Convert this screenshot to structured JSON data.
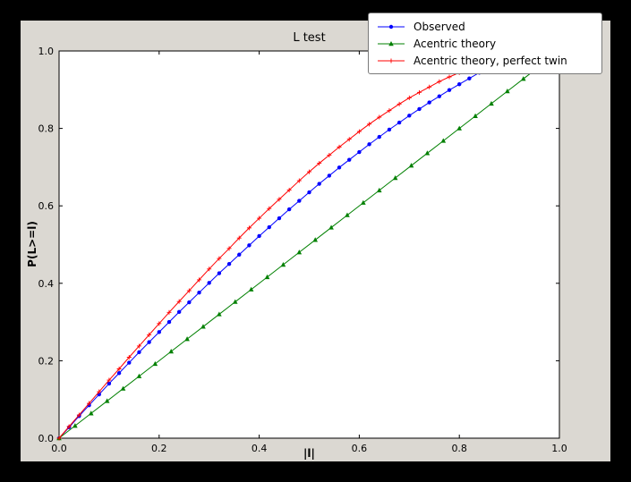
{
  "figure": {
    "window_background": "#000000",
    "figure_background": "#dbd8d2",
    "axes_background": "#ffffff",
    "axes_edge_color": "#000000"
  },
  "chart_data": {
    "type": "line",
    "title": "L test",
    "xlabel": "|l|",
    "ylabel": "P(L>=l)",
    "xlim": [
      0,
      1
    ],
    "ylim": [
      0,
      1
    ],
    "grid": false,
    "legend_position": "upper right",
    "xtick_labels": [
      "0.0",
      "0.2",
      "0.4",
      "0.6",
      "0.8",
      "1.0"
    ],
    "ytick_labels": [
      "0.0",
      "0.2",
      "0.4",
      "0.6",
      "0.8",
      "1.0"
    ],
    "xticks": [
      0,
      0.2,
      0.4,
      0.6,
      0.8,
      1.0
    ],
    "yticks": [
      0,
      0.2,
      0.4,
      0.6,
      0.8,
      1.0
    ],
    "series": [
      {
        "name": "Observed",
        "color": "#0000ff",
        "marker": "circle",
        "x": [
          0,
          0.02,
          0.04,
          0.06,
          0.08,
          0.1,
          0.12,
          0.14,
          0.16,
          0.18,
          0.2,
          0.22,
          0.24,
          0.26,
          0.28,
          0.3,
          0.32,
          0.34,
          0.36,
          0.38,
          0.4,
          0.42,
          0.44,
          0.46,
          0.48,
          0.5,
          0.52,
          0.54,
          0.56,
          0.58,
          0.6,
          0.62,
          0.64,
          0.66,
          0.68,
          0.7,
          0.72,
          0.74,
          0.76,
          0.78,
          0.8,
          0.82,
          0.84,
          0.86
        ],
        "y": [
          0,
          0.028,
          0.057,
          0.085,
          0.113,
          0.141,
          0.168,
          0.195,
          0.222,
          0.248,
          0.274,
          0.3,
          0.326,
          0.351,
          0.376,
          0.401,
          0.426,
          0.45,
          0.474,
          0.498,
          0.522,
          0.545,
          0.568,
          0.591,
          0.613,
          0.635,
          0.657,
          0.678,
          0.699,
          0.719,
          0.739,
          0.759,
          0.778,
          0.797,
          0.815,
          0.833,
          0.85,
          0.867,
          0.883,
          0.899,
          0.914,
          0.929,
          0.944,
          0.958
        ]
      },
      {
        "name": "Acentric theory",
        "color": "#008000",
        "marker": "triangle",
        "x": [
          0,
          0.032,
          0.064,
          0.096,
          0.128,
          0.16,
          0.192,
          0.224,
          0.256,
          0.288,
          0.32,
          0.352,
          0.384,
          0.416,
          0.448,
          0.48,
          0.512,
          0.544,
          0.576,
          0.608,
          0.64,
          0.672,
          0.704,
          0.736,
          0.768,
          0.8,
          0.832,
          0.864,
          0.896,
          0.928,
          0.96
        ],
        "y": [
          0,
          0.032,
          0.064,
          0.096,
          0.128,
          0.16,
          0.192,
          0.224,
          0.256,
          0.288,
          0.32,
          0.352,
          0.384,
          0.416,
          0.448,
          0.48,
          0.512,
          0.544,
          0.576,
          0.608,
          0.64,
          0.672,
          0.704,
          0.736,
          0.768,
          0.8,
          0.832,
          0.864,
          0.896,
          0.928,
          0.96
        ]
      },
      {
        "name": "Acentric theory, perfect twin",
        "color": "#ff0000",
        "marker": "plus",
        "x": [
          0,
          0.02,
          0.04,
          0.06,
          0.08,
          0.1,
          0.12,
          0.14,
          0.16,
          0.18,
          0.2,
          0.22,
          0.24,
          0.26,
          0.28,
          0.3,
          0.32,
          0.34,
          0.36,
          0.38,
          0.4,
          0.42,
          0.44,
          0.46,
          0.48,
          0.5,
          0.52,
          0.54,
          0.56,
          0.58,
          0.6,
          0.62,
          0.64,
          0.66,
          0.68,
          0.7,
          0.72,
          0.74,
          0.76,
          0.78,
          0.8,
          0.82,
          0.84,
          0.86
        ],
        "y": [
          0,
          0.03,
          0.06,
          0.09,
          0.12,
          0.15,
          0.179,
          0.209,
          0.238,
          0.267,
          0.296,
          0.325,
          0.353,
          0.381,
          0.409,
          0.437,
          0.464,
          0.49,
          0.517,
          0.543,
          0.568,
          0.593,
          0.617,
          0.641,
          0.665,
          0.688,
          0.71,
          0.731,
          0.752,
          0.772,
          0.792,
          0.811,
          0.829,
          0.846,
          0.863,
          0.879,
          0.893,
          0.907,
          0.921,
          0.933,
          0.944,
          0.954,
          0.964,
          0.972
        ]
      }
    ]
  }
}
